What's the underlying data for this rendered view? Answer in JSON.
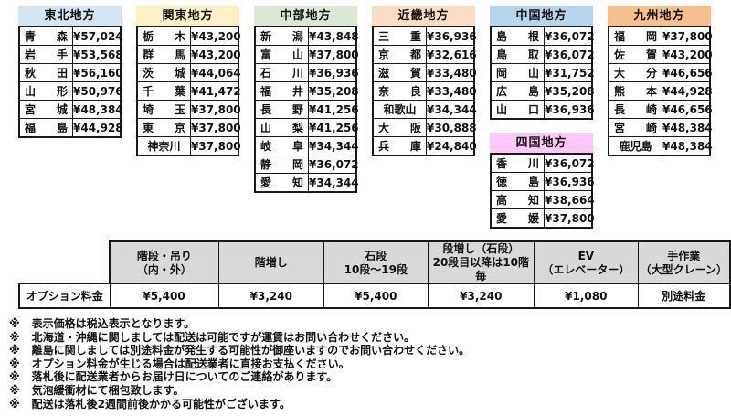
{
  "page": {
    "background": "#ffffff",
    "border_color": "#1a1a1a"
  },
  "region_layout": {
    "columns": [
      [
        "tohoku"
      ],
      [
        "kanto"
      ],
      [
        "chubu"
      ],
      [
        "kinki"
      ],
      [
        "chugoku",
        "shikoku"
      ],
      [
        "kyushu"
      ]
    ]
  },
  "regions": {
    "tohoku": {
      "title": "東北地方",
      "header_color": "#d4e6f4",
      "rows": [
        {
          "name": "青森",
          "price": "¥57,024"
        },
        {
          "name": "岩手",
          "price": "¥53,568"
        },
        {
          "name": "秋田",
          "price": "¥56,160"
        },
        {
          "name": "山形",
          "price": "¥50,976"
        },
        {
          "name": "宮城",
          "price": "¥48,384"
        },
        {
          "name": "福島",
          "price": "¥44,928"
        }
      ]
    },
    "kanto": {
      "title": "関東地方",
      "header_color": "#fdf0c5",
      "rows": [
        {
          "name": "栃木",
          "price": "¥43,200"
        },
        {
          "name": "群馬",
          "price": "¥43,200"
        },
        {
          "name": "茨城",
          "price": "¥44,064"
        },
        {
          "name": "千葉",
          "price": "¥41,472"
        },
        {
          "name": "埼玉",
          "price": "¥37,800"
        },
        {
          "name": "東京",
          "price": "¥37,800"
        },
        {
          "name": "神奈川",
          "price": "¥37,800"
        }
      ]
    },
    "chubu": {
      "title": "中部地方",
      "header_color": "#dbe9d4",
      "rows": [
        {
          "name": "新潟",
          "price": "¥43,848"
        },
        {
          "name": "富山",
          "price": "¥37,800"
        },
        {
          "name": "石川",
          "price": "¥36,936"
        },
        {
          "name": "福井",
          "price": "¥35,208"
        },
        {
          "name": "長野",
          "price": "¥41,256"
        },
        {
          "name": "山梨",
          "price": "¥41,256"
        },
        {
          "name": "岐阜",
          "price": "¥34,344"
        },
        {
          "name": "静岡",
          "price": "¥36,072"
        },
        {
          "name": "愛知",
          "price": "¥34,344"
        }
      ]
    },
    "kinki": {
      "title": "近畿地方",
      "header_color": "#fcdcc5",
      "rows": [
        {
          "name": "三重",
          "price": "¥36,936"
        },
        {
          "name": "京都",
          "price": "¥32,616"
        },
        {
          "name": "滋賀",
          "price": "¥33,480"
        },
        {
          "name": "奈良",
          "price": "¥33,480"
        },
        {
          "name": "和歌山",
          "price": "¥34,344"
        },
        {
          "name": "大阪",
          "price": "¥30,888"
        },
        {
          "name": "兵庫",
          "price": "¥24,840"
        }
      ]
    },
    "chugoku": {
      "title": "中国地方",
      "header_color": "#b7d4ee",
      "rows": [
        {
          "name": "島根",
          "price": "¥36,072"
        },
        {
          "name": "鳥取",
          "price": "¥36,072"
        },
        {
          "name": "岡山",
          "price": "¥31,752"
        },
        {
          "name": "広島",
          "price": "¥35,208"
        },
        {
          "name": "山口",
          "price": "¥36,936"
        }
      ]
    },
    "shikoku": {
      "title": "四国地方",
      "header_color": "#ffc8f8",
      "rows": [
        {
          "name": "香川",
          "price": "¥36,072"
        },
        {
          "name": "徳島",
          "price": "¥36,936"
        },
        {
          "name": "高知",
          "price": "¥38,664"
        },
        {
          "name": "愛媛",
          "price": "¥37,800"
        }
      ]
    },
    "kyushu": {
      "title": "九州地方",
      "header_color": "#f6c08c",
      "rows": [
        {
          "name": "福岡",
          "price": "¥37,800"
        },
        {
          "name": "佐賀",
          "price": "¥43,200"
        },
        {
          "name": "大分",
          "price": "¥46,656"
        },
        {
          "name": "熊本",
          "price": "¥44,928"
        },
        {
          "name": "長崎",
          "price": "¥46,656"
        },
        {
          "name": "宮崎",
          "price": "¥48,384"
        },
        {
          "name": "鹿児島",
          "price": "¥48,384"
        }
      ]
    }
  },
  "options_table": {
    "header_bg": "#d9d9d9",
    "row_label": "オプション料金",
    "columns": [
      {
        "header": "階段・吊り\n（内・外）",
        "value": "¥5,400"
      },
      {
        "header": "階増し",
        "value": "¥3,240"
      },
      {
        "header": "石段\n10段～19段",
        "value": "¥5,400"
      },
      {
        "header": "段増し（石段）\n20段目以降は10階\n毎",
        "value": "¥3,240"
      },
      {
        "header": "EV\n（エレベーター）",
        "value": "¥1,080"
      },
      {
        "header": "手作業\n（大型クレーン）",
        "value": "別途料金"
      }
    ]
  },
  "notes": {
    "marker": "※",
    "items": [
      "表示価格は税込表示となります。",
      "北海道・沖縄に関しましては配送は可能ですが運賃はお問い合わせください。",
      "離島に関しましては別途料金が発生する可能性が御座いますのでお問い合わせください。",
      "オプション料金が生じる場合は配送業者に直接お支払ください。",
      "落札後に配送業者からお届け日についてのご連絡があります。",
      "気泡緩衝材にて梱包致します。",
      "配送は落札後2週間前後かかる可能性がございます。"
    ]
  }
}
